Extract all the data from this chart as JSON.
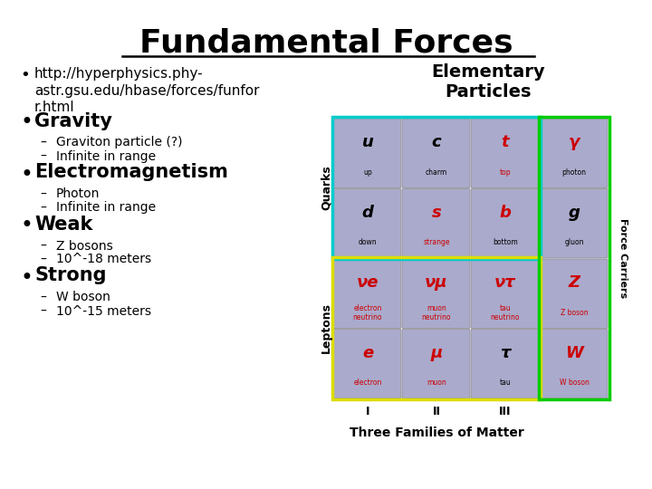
{
  "title": "Fundamental Forces",
  "background_color": "#ffffff",
  "title_fontsize": 26,
  "bullet_items": [
    {
      "text": "http://hyperphysics.phy-\nastr.gsu.edu/hbase/forces/funfor\nr.html",
      "level": 0,
      "fontsize": 11,
      "bold": false
    },
    {
      "text": "Gravity",
      "level": 0,
      "fontsize": 15,
      "bold": true
    },
    {
      "text": "Graviton particle (?)",
      "level": 1,
      "fontsize": 10,
      "bold": false
    },
    {
      "text": "Infinite in range",
      "level": 1,
      "fontsize": 10,
      "bold": false
    },
    {
      "text": "Electromagnetism",
      "level": 0,
      "fontsize": 15,
      "bold": true
    },
    {
      "text": "Photon",
      "level": 1,
      "fontsize": 10,
      "bold": false
    },
    {
      "text": "Infinite in range",
      "level": 1,
      "fontsize": 10,
      "bold": false
    },
    {
      "text": "Weak",
      "level": 0,
      "fontsize": 15,
      "bold": true
    },
    {
      "text": "Z bosons",
      "level": 1,
      "fontsize": 10,
      "bold": false
    },
    {
      "text": "10^-18 meters",
      "level": 1,
      "fontsize": 10,
      "bold": false
    },
    {
      "text": "Strong",
      "level": 0,
      "fontsize": 15,
      "bold": true
    },
    {
      "text": "W boson",
      "level": 1,
      "fontsize": 10,
      "bold": false
    },
    {
      "text": "10^-15 meters",
      "level": 1,
      "fontsize": 10,
      "bold": false
    }
  ],
  "cell_purple": "#aaaacc",
  "cell_edge": "#888888",
  "border_cyan": "#00cccc",
  "border_yellow": "#dddd00",
  "border_green": "#00cc00",
  "red_color": "#cc0000",
  "rows_data": [
    [
      {
        "sym": "u",
        "name": "up",
        "red_sym": false,
        "red_name": false
      },
      {
        "sym": "c",
        "name": "charm",
        "red_sym": false,
        "red_name": false
      },
      {
        "sym": "t",
        "name": "top",
        "red_sym": true,
        "red_name": true
      },
      {
        "sym": "γ",
        "name": "photon",
        "red_sym": true,
        "red_name": false
      }
    ],
    [
      {
        "sym": "d",
        "name": "down",
        "red_sym": false,
        "red_name": false
      },
      {
        "sym": "s",
        "name": "strange",
        "red_sym": true,
        "red_name": true
      },
      {
        "sym": "b",
        "name": "bottom",
        "red_sym": true,
        "red_name": false
      },
      {
        "sym": "g",
        "name": "gluon",
        "red_sym": false,
        "red_name": false
      }
    ],
    [
      {
        "sym": "νe",
        "name": "electron\nneutrino",
        "red_sym": true,
        "red_name": true
      },
      {
        "sym": "νμ",
        "name": "muon\nneutrino",
        "red_sym": true,
        "red_name": true
      },
      {
        "sym": "ντ",
        "name": "tau\nneutrino",
        "red_sym": true,
        "red_name": true
      },
      {
        "sym": "Z",
        "name": "Z boson",
        "red_sym": true,
        "red_name": true
      }
    ],
    [
      {
        "sym": "e",
        "name": "electron",
        "red_sym": true,
        "red_name": true
      },
      {
        "sym": "μ",
        "name": "muon",
        "red_sym": true,
        "red_name": true
      },
      {
        "sym": "τ",
        "name": "tau",
        "red_sym": false,
        "red_name": false
      },
      {
        "sym": "W",
        "name": "W boson",
        "red_sym": true,
        "red_name": true
      }
    ]
  ]
}
